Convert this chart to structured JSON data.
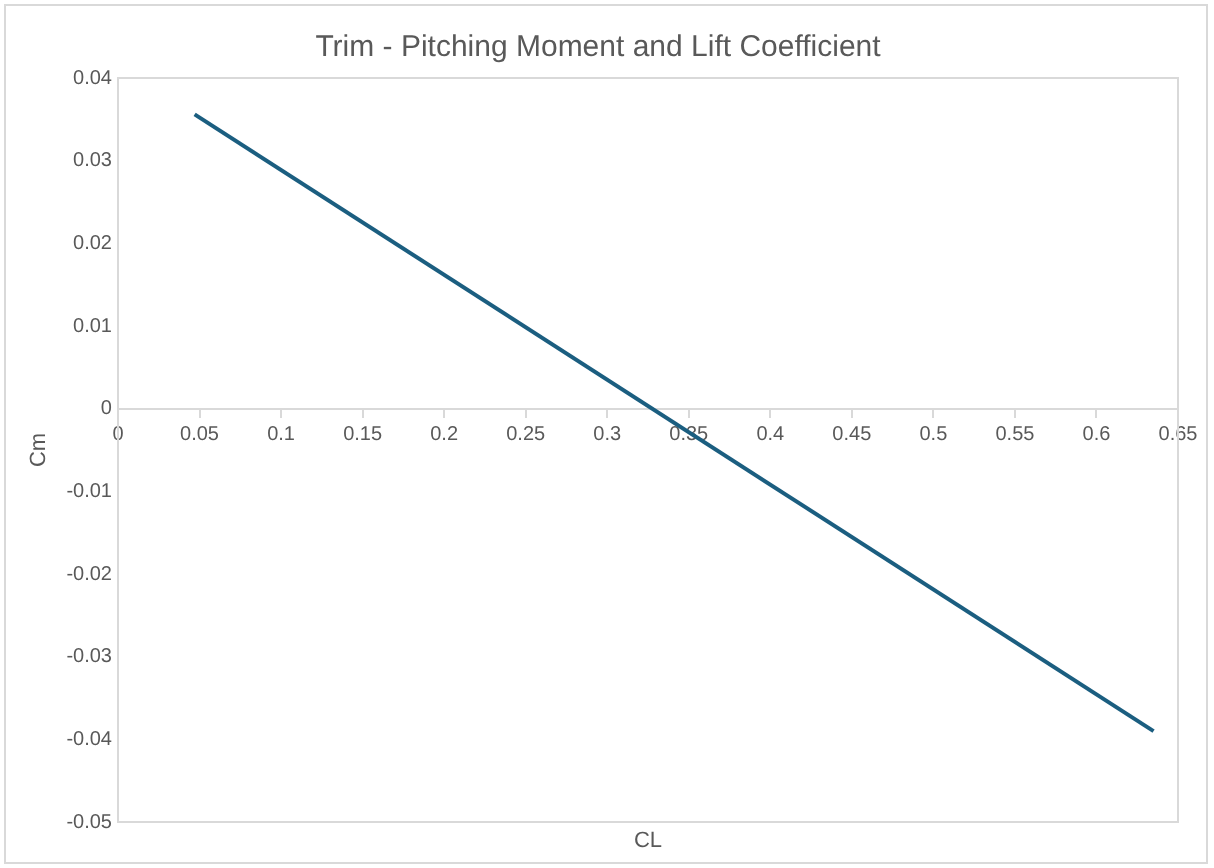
{
  "chart_data": {
    "type": "line",
    "title": "Trim - Pitching Moment and Lift Coefficient",
    "xlabel": "CL",
    "ylabel": "Cm",
    "x": [
      0.047,
      0.635
    ],
    "series": [
      {
        "color": "#1b5e80",
        "values": [
          0.0356,
          -0.039
        ]
      }
    ],
    "xlim": [
      0,
      0.65
    ],
    "xticks": [
      0,
      0.05,
      0.1,
      0.15,
      0.2,
      0.25,
      0.3,
      0.35,
      0.4,
      0.45,
      0.5,
      0.55,
      0.6,
      0.65
    ],
    "ylim": [
      -0.05,
      0.04
    ],
    "yticks": [
      -0.05,
      -0.04,
      -0.03,
      -0.02,
      -0.01,
      0,
      0.01,
      0.02,
      0.03,
      0.04
    ],
    "grid": false,
    "legend": false,
    "marker": "none",
    "line_style": "solid"
  }
}
